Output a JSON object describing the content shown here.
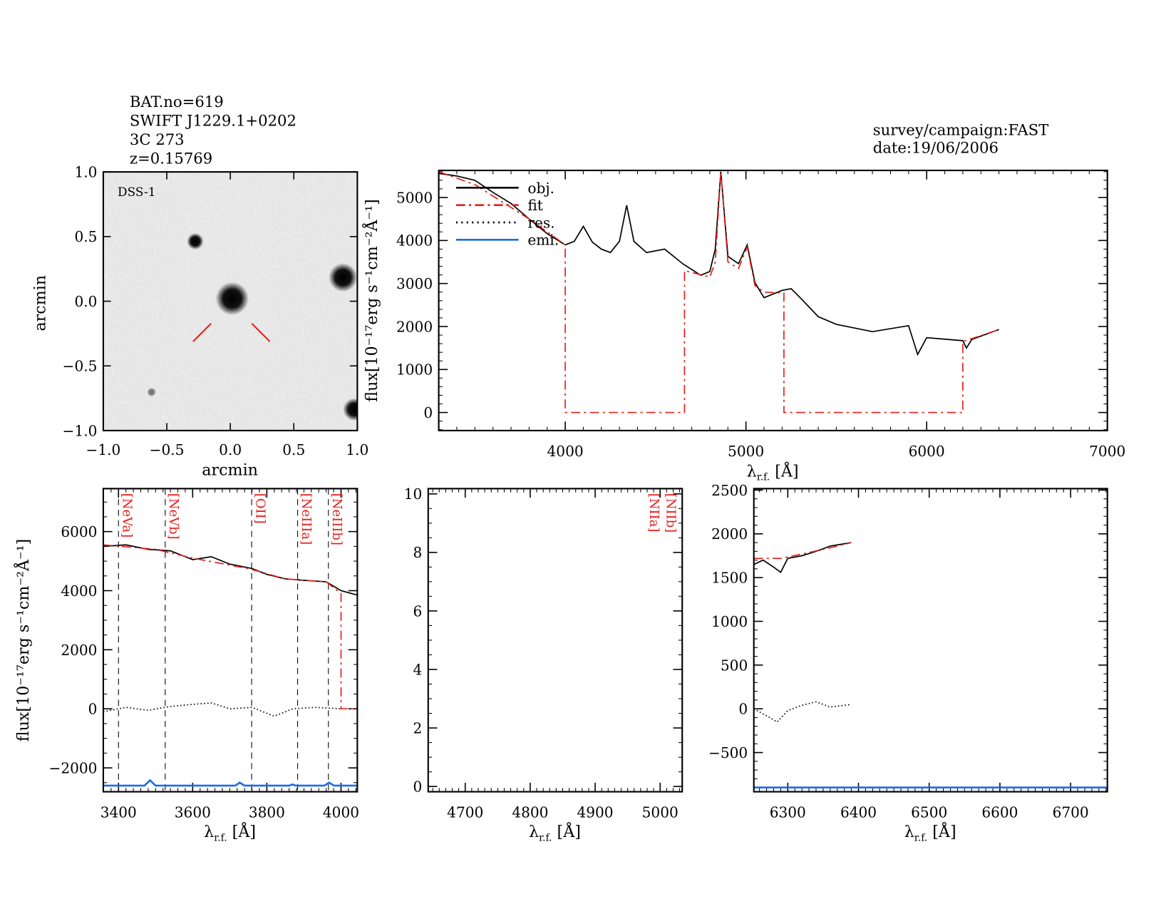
{
  "header": {
    "left_lines": [
      "BAT.no=619",
      "SWIFT J1229.1+0202",
      "3C 273",
      "z=0.15769"
    ],
    "right_lines": [
      "survey/campaign:FAST",
      "date:19/06/2006"
    ]
  },
  "colors": {
    "obj": "#000000",
    "fit": "#e8201c",
    "res": "#000000",
    "emi": "#1a6be8"
  },
  "image_panel": {
    "label": "DSS-1",
    "xlabel": "arcmin",
    "ylabel": "arcmin",
    "xlim": [
      -1.0,
      1.0
    ],
    "ylim": [
      -1.0,
      1.0
    ],
    "xticks": [
      "−1.0",
      "−0.5",
      "0.0",
      "0.5",
      "1.0"
    ],
    "yticks": [
      "−1.0",
      "−0.5",
      "0.0",
      "0.5",
      "1.0"
    ]
  },
  "legend": [
    "obj.",
    "fit",
    "res.",
    "emi."
  ],
  "xlabel": {
    "symbol": "λ",
    "sub": "r.f.",
    "unit": "[Å]"
  },
  "ylabel": "flux[10⁻¹⁷erg s⁻¹cm⁻²Å⁻¹]",
  "chart_data": [
    {
      "type": "line",
      "panel": "full-spectrum",
      "xlim": [
        3300,
        7000
      ],
      "ylim": [
        -420,
        5630
      ],
      "xticks": [
        4000,
        5000,
        6000,
        7000
      ],
      "yticks": [
        0,
        1000,
        2000,
        3000,
        4000,
        5000
      ],
      "legend_position": "top-left",
      "series": [
        {
          "name": "obj.",
          "style": "solid",
          "points": [
            [
              3300,
              5560
            ],
            [
              3400,
              5500
            ],
            [
              3500,
              5400
            ],
            [
              3600,
              5120
            ],
            [
              3700,
              4860
            ],
            [
              3800,
              4500
            ],
            [
              3900,
              4160
            ],
            [
              4000,
              3900
            ],
            [
              4050,
              3980
            ],
            [
              4100,
              4330
            ],
            [
              4150,
              3960
            ],
            [
              4200,
              3800
            ],
            [
              4250,
              3720
            ],
            [
              4300,
              3980
            ],
            [
              4340,
              4820
            ],
            [
              4380,
              3980
            ],
            [
              4450,
              3720
            ],
            [
              4550,
              3800
            ],
            [
              4650,
              3460
            ],
            [
              4750,
              3190
            ],
            [
              4800,
              3280
            ],
            [
              4830,
              3800
            ],
            [
              4861,
              5600
            ],
            [
              4900,
              3630
            ],
            [
              4959,
              3460
            ],
            [
              5007,
              3900
            ],
            [
              5050,
              3020
            ],
            [
              5100,
              2670
            ],
            [
              5200,
              2840
            ],
            [
              5250,
              2880
            ],
            [
              5300,
              2670
            ],
            [
              5400,
              2230
            ],
            [
              5500,
              2050
            ],
            [
              5700,
              1880
            ],
            [
              5900,
              2020
            ],
            [
              5950,
              1350
            ],
            [
              6000,
              1740
            ],
            [
              6200,
              1670
            ],
            [
              6220,
              1500
            ],
            [
              6250,
              1700
            ],
            [
              6400,
              1930
            ]
          ]
        },
        {
          "name": "fit",
          "style": "dashdot",
          "points": [
            [
              3300,
              5600
            ],
            [
              3500,
              5300
            ],
            [
              3800,
              4500
            ],
            [
              4000,
              3900
            ],
            [
              4000,
              0
            ],
            [
              4660,
              0
            ],
            [
              4660,
              3300
            ],
            [
              4800,
              3150
            ],
            [
              4830,
              3500
            ],
            [
              4861,
              5600
            ],
            [
              4900,
              3500
            ],
            [
              4959,
              3350
            ],
            [
              5007,
              3850
            ],
            [
              5050,
              2950
            ],
            [
              5100,
              2800
            ],
            [
              5210,
              2780
            ],
            [
              5210,
              0
            ],
            [
              6200,
              0
            ],
            [
              6200,
              1650
            ],
            [
              6400,
              1930
            ]
          ]
        }
      ]
    },
    {
      "type": "line",
      "panel": "blue-window",
      "xlim": [
        3359,
        4044
      ],
      "ylim": [
        -2808,
        7455
      ],
      "xticks": [
        3400,
        3600,
        3800,
        4000
      ],
      "yticks": [
        -2000,
        0,
        2000,
        4000,
        6000
      ],
      "line_markers": [
        {
          "label": "[NeVa]",
          "x": 3400
        },
        {
          "label": "[NeVb]",
          "x": 3526
        },
        {
          "label": "[OII]",
          "x": 3759
        },
        {
          "label": "[NeIIIa]",
          "x": 3883
        },
        {
          "label": "[NeIIIb]",
          "x": 3966
        }
      ],
      "series": [
        {
          "name": "obj.",
          "style": "solid",
          "points": [
            [
              3359,
              5500
            ],
            [
              3420,
              5550
            ],
            [
              3480,
              5400
            ],
            [
              3540,
              5350
            ],
            [
              3600,
              5050
            ],
            [
              3650,
              5150
            ],
            [
              3700,
              4900
            ],
            [
              3760,
              4750
            ],
            [
              3800,
              4550
            ],
            [
              3850,
              4400
            ],
            [
              3900,
              4350
            ],
            [
              3960,
              4300
            ],
            [
              4000,
              4000
            ],
            [
              4044,
              3850
            ]
          ]
        },
        {
          "name": "fit",
          "style": "dashdot",
          "points": [
            [
              3359,
              5550
            ],
            [
              3500,
              5400
            ],
            [
              3600,
              5100
            ],
            [
              3750,
              4750
            ],
            [
              3850,
              4400
            ],
            [
              3960,
              4300
            ],
            [
              4000,
              3900
            ],
            [
              4000,
              0
            ],
            [
              4044,
              0
            ]
          ]
        },
        {
          "name": "res.",
          "style": "dotted",
          "points": [
            [
              3359,
              -100
            ],
            [
              3420,
              50
            ],
            [
              3480,
              -50
            ],
            [
              3540,
              80
            ],
            [
              3600,
              150
            ],
            [
              3650,
              200
            ],
            [
              3700,
              0
            ],
            [
              3760,
              50
            ],
            [
              3820,
              -250
            ],
            [
              3870,
              0
            ],
            [
              3930,
              50
            ],
            [
              4000,
              0
            ]
          ]
        },
        {
          "name": "emi.",
          "style": "solid",
          "points": [
            [
              3359,
              -2600
            ],
            [
              3470,
              -2600
            ],
            [
              3485,
              -2420
            ],
            [
              3500,
              -2600
            ],
            [
              3715,
              -2600
            ],
            [
              3727,
              -2500
            ],
            [
              3740,
              -2600
            ],
            [
              3860,
              -2600
            ],
            [
              3869,
              -2560
            ],
            [
              3878,
              -2600
            ],
            [
              3955,
              -2600
            ],
            [
              3968,
              -2500
            ],
            [
              3981,
              -2600
            ],
            [
              4044,
              -2600
            ]
          ]
        }
      ]
    },
    {
      "type": "line",
      "panel": "hbeta-window",
      "xlim": [
        4643,
        5034
      ],
      "ylim": [
        -0.18,
        10.18
      ],
      "xticks": [
        4700,
        4800,
        4900,
        5000
      ],
      "yticks": [
        0,
        2,
        4,
        6,
        8,
        10
      ],
      "line_markers": [
        {
          "label": "[NIIa]",
          "x": 4993
        },
        {
          "label": "[NIIb]",
          "x": 5003
        }
      ],
      "series": []
    },
    {
      "type": "line",
      "panel": "halpha-window",
      "xlim": [
        6252,
        6752
      ],
      "ylim": [
        -948,
        2517
      ],
      "xticks": [
        6300,
        6400,
        6500,
        6600,
        6700
      ],
      "yticks": [
        -500,
        0,
        500,
        1000,
        1500,
        2000,
        2500
      ],
      "series": [
        {
          "name": "obj.",
          "style": "solid",
          "points": [
            [
              6252,
              1650
            ],
            [
              6265,
              1700
            ],
            [
              6280,
              1620
            ],
            [
              6290,
              1560
            ],
            [
              6300,
              1720
            ],
            [
              6320,
              1750
            ],
            [
              6340,
              1800
            ],
            [
              6360,
              1860
            ],
            [
              6375,
              1880
            ],
            [
              6390,
              1900
            ]
          ]
        },
        {
          "name": "fit",
          "style": "dashdot",
          "points": [
            [
              6252,
              1720
            ],
            [
              6290,
              1720
            ],
            [
              6320,
              1770
            ],
            [
              6360,
              1840
            ],
            [
              6390,
              1900
            ]
          ]
        },
        {
          "name": "res.",
          "style": "dotted",
          "points": [
            [
              6252,
              0
            ],
            [
              6270,
              -80
            ],
            [
              6285,
              -150
            ],
            [
              6300,
              -20
            ],
            [
              6320,
              40
            ],
            [
              6340,
              80
            ],
            [
              6360,
              20
            ],
            [
              6390,
              50
            ]
          ]
        },
        {
          "name": "emi.",
          "style": "solid",
          "points": [
            [
              6252,
              -900
            ],
            [
              6752,
              -900
            ]
          ]
        }
      ]
    }
  ]
}
